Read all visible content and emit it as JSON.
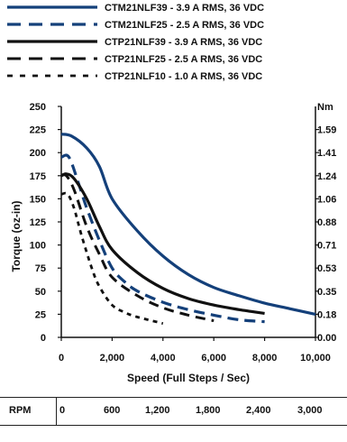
{
  "chart_data": {
    "type": "line",
    "title": "",
    "xlabel": "Speed  (Full Steps / Sec)",
    "ylabel": "Torque (oz-in)",
    "y2label": "Nm",
    "xlim": [
      0,
      10000
    ],
    "ylim": [
      0,
      250
    ],
    "x_ticks": [
      0,
      2000,
      4000,
      6000,
      8000,
      10000
    ],
    "x_tick_labels": [
      "0",
      "2,000",
      "4,000",
      "6,000",
      "8,000",
      "10,000"
    ],
    "y_ticks": [
      0,
      25,
      50,
      75,
      100,
      125,
      150,
      175,
      200,
      225,
      250
    ],
    "y_tick_labels": [
      "0",
      "25",
      "50",
      "75",
      "100",
      "125",
      "150",
      "175",
      "200",
      "225",
      "250"
    ],
    "y2_tick_labels": [
      "0.00",
      "0.18",
      "0.35",
      "0.53",
      "0.71",
      "0.88",
      "1.06",
      "1.24",
      "1.41",
      "1.59"
    ],
    "grid": false,
    "legend_position": "top",
    "series": [
      {
        "name": "CTM21NLF39  -  3.9 A RMS,  36 VDC",
        "color": "#14407a",
        "style": "solid-thick",
        "x": [
          0,
          400,
          1000,
          1500,
          2000,
          3000,
          4000,
          5000,
          6000,
          7000,
          8000,
          9000,
          10000
        ],
        "y": [
          220,
          218,
          205,
          185,
          150,
          115,
          88,
          68,
          54,
          45,
          37,
          31,
          25
        ]
      },
      {
        "name": "CTM21NLF25  -  2.5 A RMS,  36 VDC",
        "color": "#14407a",
        "style": "dashed-thick",
        "x": [
          0,
          300,
          700,
          1000,
          1500,
          2000,
          2500,
          3000,
          4000,
          5000,
          6000,
          7000,
          8000
        ],
        "y": [
          195,
          195,
          165,
          140,
          105,
          75,
          60,
          50,
          38,
          30,
          24,
          19,
          17
        ]
      },
      {
        "name": "CTP21NLF39  -  3.9 A RMS,  36 VDC",
        "color": "#111111",
        "style": "solid-thick",
        "x": [
          0,
          200,
          500,
          1000,
          1500,
          2000,
          3000,
          4000,
          5000,
          6000,
          7000,
          8000
        ],
        "y": [
          175,
          177,
          172,
          150,
          120,
          95,
          70,
          53,
          42,
          35,
          30,
          26
        ]
      },
      {
        "name": "CTP21NLF25  -  2.5 A RMS,  36 VDC",
        "color": "#111111",
        "style": "dashed",
        "x": [
          0,
          200,
          500,
          1000,
          1500,
          2000,
          3000,
          4000,
          5000,
          6000
        ],
        "y": [
          175,
          175,
          160,
          120,
          90,
          65,
          45,
          32,
          24,
          18
        ]
      },
      {
        "name": "CTP21NLF10  -  1.0 A RMS,  36 VDC",
        "color": "#111111",
        "style": "dotted",
        "x": [
          0,
          250,
          500,
          800,
          1200,
          1500,
          2000,
          2500,
          3000,
          4000
        ],
        "y": [
          155,
          155,
          140,
          110,
          75,
          55,
          35,
          27,
          22,
          15
        ]
      }
    ]
  },
  "rpm_table": {
    "label": "RPM",
    "values": [
      "0",
      "600",
      "1,200",
      "1,800",
      "2,400",
      "3,000"
    ]
  }
}
